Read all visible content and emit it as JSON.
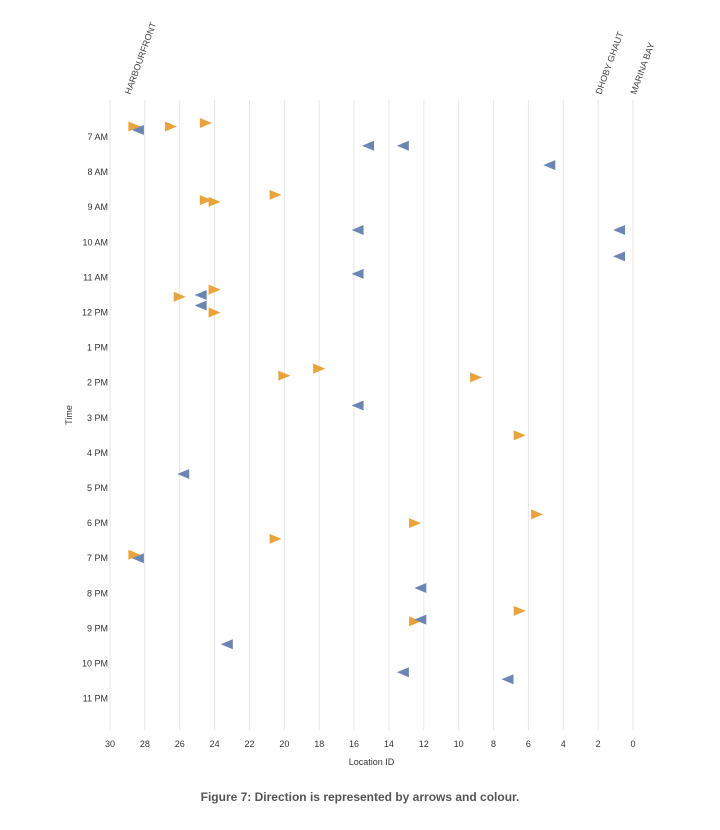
{
  "chart_data": {
    "type": "scatter",
    "title": "",
    "xlabel": "Location ID",
    "ylabel": "Time",
    "x_reversed": true,
    "xlim": [
      0,
      30
    ],
    "x_ticks": [
      30,
      28,
      26,
      24,
      22,
      20,
      18,
      16,
      14,
      12,
      10,
      8,
      6,
      4,
      2,
      0
    ],
    "y_ticks": [
      "7 AM",
      "8 AM",
      "9 AM",
      "10 AM",
      "11 AM",
      "12 PM",
      "1 PM",
      "2 PM",
      "3 PM",
      "4 PM",
      "5 PM",
      "6 PM",
      "7 PM",
      "8 PM",
      "9 PM",
      "10 PM",
      "11 PM"
    ],
    "ylim_hours": [
      6.3,
      24.0
    ],
    "grid": "vertical",
    "location_labels": [
      {
        "text": "HARBOURFRONT",
        "x": 29
      },
      {
        "text": "DHOBY GHAUT",
        "x": 2
      },
      {
        "text": "MARINA BAY",
        "x": 0
      }
    ],
    "series": [
      {
        "color": "#e8a33d",
        "direction": "right",
        "points": [
          {
            "x": 28.6,
            "t": 6.7
          },
          {
            "x": 26.5,
            "t": 6.7
          },
          {
            "x": 24.5,
            "t": 6.6
          },
          {
            "x": 20.5,
            "t": 8.65
          },
          {
            "x": 24.5,
            "t": 8.8
          },
          {
            "x": 24.0,
            "t": 8.85
          },
          {
            "x": 24.0,
            "t": 11.35
          },
          {
            "x": 26.0,
            "t": 11.55
          },
          {
            "x": 24.0,
            "t": 12.0
          },
          {
            "x": 18.0,
            "t": 13.6
          },
          {
            "x": 20.0,
            "t": 13.8
          },
          {
            "x": 9.0,
            "t": 13.85
          },
          {
            "x": 6.5,
            "t": 15.5
          },
          {
            "x": 5.5,
            "t": 17.75
          },
          {
            "x": 12.5,
            "t": 18.0
          },
          {
            "x": 20.5,
            "t": 18.45
          },
          {
            "x": 28.6,
            "t": 18.9
          },
          {
            "x": 6.5,
            "t": 20.5
          },
          {
            "x": 12.5,
            "t": 20.8
          }
        ]
      },
      {
        "color": "#6b86b3",
        "direction": "left",
        "points": [
          {
            "x": 28.4,
            "t": 6.8
          },
          {
            "x": 15.2,
            "t": 7.25
          },
          {
            "x": 13.2,
            "t": 7.25
          },
          {
            "x": 4.8,
            "t": 7.8
          },
          {
            "x": 15.8,
            "t": 9.65
          },
          {
            "x": 0.8,
            "t": 9.65
          },
          {
            "x": 0.8,
            "t": 10.4
          },
          {
            "x": 15.8,
            "t": 10.9
          },
          {
            "x": 24.8,
            "t": 11.5
          },
          {
            "x": 24.8,
            "t": 11.8
          },
          {
            "x": 15.8,
            "t": 14.65
          },
          {
            "x": 25.8,
            "t": 16.6
          },
          {
            "x": 28.4,
            "t": 19.0
          },
          {
            "x": 12.2,
            "t": 19.85
          },
          {
            "x": 12.2,
            "t": 20.75
          },
          {
            "x": 23.3,
            "t": 21.45
          },
          {
            "x": 13.2,
            "t": 22.25
          },
          {
            "x": 7.2,
            "t": 22.45
          }
        ]
      }
    ]
  },
  "caption": "Figure 7: Direction is represented by arrows and colour."
}
